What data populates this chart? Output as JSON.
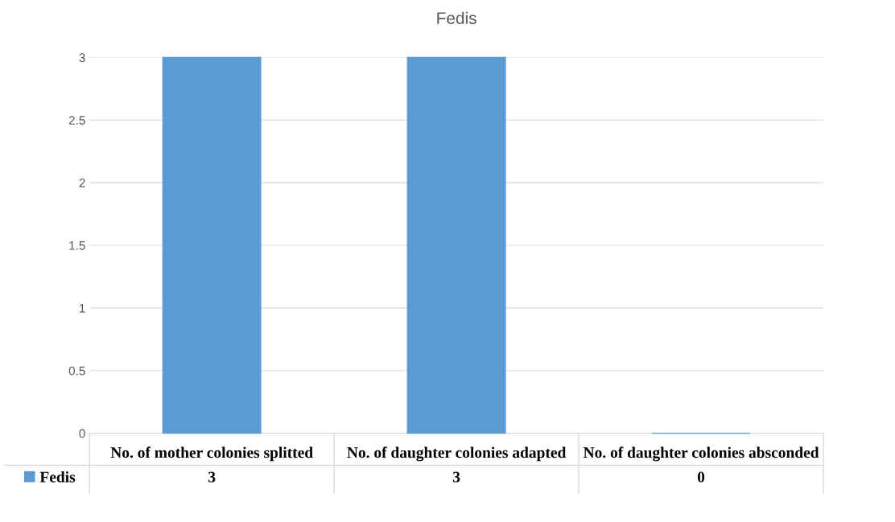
{
  "chart_data": {
    "type": "bar",
    "title": "Fedis",
    "categories": [
      "No. of mother colonies splitted",
      "No. of daughter colonies adapted",
      "No. of daughter colonies absconded"
    ],
    "series": [
      {
        "name": "Fedis",
        "color": "#5b9bd5",
        "values": [
          3,
          3,
          0
        ]
      }
    ],
    "ylim": [
      0,
      3
    ],
    "yticks": [
      0,
      0.5,
      1,
      1.5,
      2,
      2.5,
      3
    ],
    "grid": "y",
    "legend": "bottom",
    "data_labels": true
  }
}
